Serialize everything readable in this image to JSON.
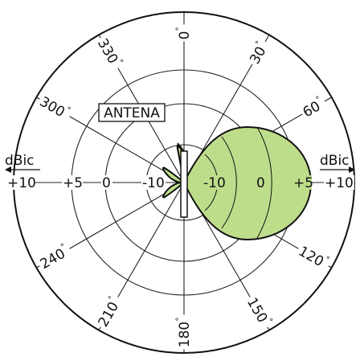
{
  "diagram": {
    "antenna_label": "ANTENA",
    "unit_left": "dBic",
    "unit_right": "dBic",
    "left_scale": [
      "+10",
      "+5",
      "0",
      "-10"
    ],
    "right_scale": [
      "-10",
      "0",
      "+5",
      "+10"
    ],
    "angles": [
      {
        "text": "0",
        "deg": 0
      },
      {
        "text": "30",
        "deg": 30
      },
      {
        "text": "60",
        "deg": 60
      },
      {
        "text": "120",
        "deg": 120
      },
      {
        "text": "150",
        "deg": 150
      },
      {
        "text": "180",
        "deg": 180
      },
      {
        "text": "210",
        "deg": 210
      },
      {
        "text": "240",
        "deg": 240
      },
      {
        "text": "300",
        "deg": 300
      },
      {
        "text": "330",
        "deg": 330
      }
    ],
    "colors": {
      "lobe_fill": "#bedd8b",
      "line": "#111111",
      "background": "#ffffff"
    }
  }
}
